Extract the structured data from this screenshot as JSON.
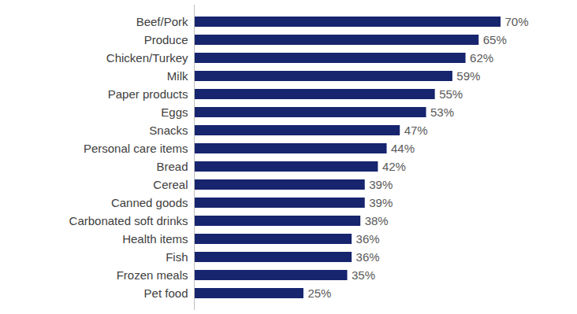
{
  "chart_data": {
    "type": "bar",
    "orientation": "horizontal",
    "categories": [
      "Beef/Pork",
      "Produce",
      "Chicken/Turkey",
      "Milk",
      "Paper products",
      "Eggs",
      "Snacks",
      "Personal care items",
      "Bread",
      "Cereal",
      "Canned goods",
      "Carbonated soft drinks",
      "Health items",
      "Fish",
      "Frozen meals",
      "Pet food"
    ],
    "values": [
      70,
      65,
      62,
      59,
      55,
      53,
      47,
      44,
      42,
      39,
      39,
      38,
      36,
      36,
      35,
      25
    ],
    "value_labels": [
      "70%",
      "65%",
      "62%",
      "59%",
      "55%",
      "53%",
      "47%",
      "44%",
      "42%",
      "39%",
      "39%",
      "38%",
      "36%",
      "36%",
      "35%",
      "25%"
    ],
    "color": "#17246e",
    "xlim": [
      0,
      70
    ],
    "grid": false,
    "data_labels": true,
    "tick_labels": "y"
  }
}
